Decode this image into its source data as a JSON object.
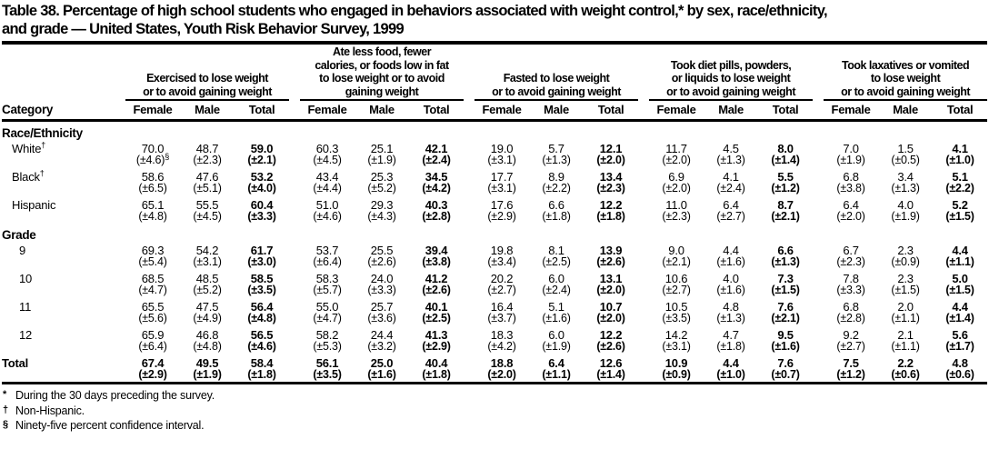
{
  "colors": {
    "text": "#000000",
    "background": "#ffffff",
    "rule": "#000000"
  },
  "title": {
    "line1": "Table 38. Percentage of high school students who engaged in behaviors associated with weight control,* by sex, race/ethnicity,",
    "line2": "and grade — United States, Youth Risk Behavior Survey, 1999"
  },
  "table": {
    "category_header": "Category",
    "sub_headers": [
      "Female",
      "Male",
      "Total"
    ],
    "groups": [
      {
        "lines": [
          "Exercised to lose weight",
          "or to avoid gaining weight"
        ]
      },
      {
        "lines": [
          "Ate less food, fewer",
          "calories, or foods low in fat",
          "to lose weight or to avoid",
          "gaining weight"
        ]
      },
      {
        "lines": [
          "Fasted to lose weight",
          "or to avoid gaining weight"
        ]
      },
      {
        "lines": [
          "Took diet pills, powders,",
          "or liquids to lose weight",
          "or to avoid gaining weight"
        ]
      },
      {
        "lines": [
          "Took laxatives or vomited",
          "to lose weight",
          "or to avoid gaining weight"
        ]
      }
    ],
    "sections": [
      {
        "label": "Race/Ethnicity",
        "rows": [
          {
            "label": "White",
            "sup": "†",
            "values": [
              "70.0",
              "48.7",
              "59.0",
              "60.3",
              "25.1",
              "42.1",
              "19.0",
              "5.7",
              "12.1",
              "11.7",
              "4.5",
              "8.0",
              "7.0",
              "1.5",
              "4.1"
            ],
            "ci": [
              "(±4.6)§",
              "(±2.3)",
              "(±2.1)",
              "(±4.5)",
              "(±1.9)",
              "(±2.4)",
              "(±3.1)",
              "(±1.3)",
              "(±2.0)",
              "(±2.0)",
              "(±1.3)",
              "(±1.4)",
              "(±1.9)",
              "(±0.5)",
              "(±1.0)"
            ]
          },
          {
            "label": "Black",
            "sup": "†",
            "values": [
              "58.6",
              "47.6",
              "53.2",
              "43.4",
              "25.3",
              "34.5",
              "17.7",
              "8.9",
              "13.4",
              "6.9",
              "4.1",
              "5.5",
              "6.8",
              "3.4",
              "5.1"
            ],
            "ci": [
              "(±6.5)",
              "(±5.1)",
              "(±4.0)",
              "(±4.4)",
              "(±5.2)",
              "(±4.2)",
              "(±3.1)",
              "(±2.2)",
              "(±2.3)",
              "(±2.0)",
              "(±2.4)",
              "(±1.2)",
              "(±3.8)",
              "(±1.3)",
              "(±2.2)"
            ]
          },
          {
            "label": "Hispanic",
            "sup": "",
            "values": [
              "65.1",
              "55.5",
              "60.4",
              "51.0",
              "29.3",
              "40.3",
              "17.6",
              "6.6",
              "12.2",
              "11.0",
              "6.4",
              "8.7",
              "6.4",
              "4.0",
              "5.2"
            ],
            "ci": [
              "(±4.8)",
              "(±4.5)",
              "(±3.3)",
              "(±4.6)",
              "(±4.3)",
              "(±2.8)",
              "(±2.9)",
              "(±1.8)",
              "(±1.8)",
              "(±2.3)",
              "(±2.7)",
              "(±2.1)",
              "(±2.0)",
              "(±1.9)",
              "(±1.5)"
            ]
          }
        ]
      },
      {
        "label": "Grade",
        "rows": [
          {
            "label": "9",
            "sup": "",
            "values": [
              "69.3",
              "54.2",
              "61.7",
              "53.7",
              "25.5",
              "39.4",
              "19.8",
              "8.1",
              "13.9",
              "9.0",
              "4.4",
              "6.6",
              "6.7",
              "2.3",
              "4.4"
            ],
            "ci": [
              "(±5.4)",
              "(±3.1)",
              "(±3.0)",
              "(±6.4)",
              "(±2.6)",
              "(±3.8)",
              "(±3.4)",
              "(±2.5)",
              "(±2.6)",
              "(±2.1)",
              "(±1.6)",
              "(±1.3)",
              "(±2.3)",
              "(±0.9)",
              "(±1.1)"
            ]
          },
          {
            "label": "10",
            "sup": "",
            "values": [
              "68.5",
              "48.5",
              "58.5",
              "58.3",
              "24.0",
              "41.2",
              "20.2",
              "6.0",
              "13.1",
              "10.6",
              "4.0",
              "7.3",
              "7.8",
              "2.3",
              "5.0"
            ],
            "ci": [
              "(±4.7)",
              "(±5.2)",
              "(±3.5)",
              "(±5.7)",
              "(±3.3)",
              "(±2.6)",
              "(±2.7)",
              "(±2.4)",
              "(±2.0)",
              "(±2.7)",
              "(±1.6)",
              "(±1.5)",
              "(±3.3)",
              "(±1.5)",
              "(±1.5)"
            ]
          },
          {
            "label": "11",
            "sup": "",
            "values": [
              "65.5",
              "47.5",
              "56.4",
              "55.0",
              "25.7",
              "40.1",
              "16.4",
              "5.1",
              "10.7",
              "10.5",
              "4.8",
              "7.6",
              "6.8",
              "2.0",
              "4.4"
            ],
            "ci": [
              "(±5.6)",
              "(±4.9)",
              "(±4.8)",
              "(±4.7)",
              "(±3.6)",
              "(±2.5)",
              "(±3.7)",
              "(±1.6)",
              "(±2.0)",
              "(±3.5)",
              "(±1.3)",
              "(±2.1)",
              "(±2.8)",
              "(±1.1)",
              "(±1.4)"
            ]
          },
          {
            "label": "12",
            "sup": "",
            "values": [
              "65.9",
              "46.8",
              "56.5",
              "58.2",
              "24.4",
              "41.3",
              "18.3",
              "6.0",
              "12.2",
              "14.2",
              "4.7",
              "9.5",
              "9.2",
              "2.1",
              "5.6"
            ],
            "ci": [
              "(±6.4)",
              "(±4.8)",
              "(±4.6)",
              "(±5.3)",
              "(±3.2)",
              "(±2.9)",
              "(±4.2)",
              "(±1.9)",
              "(±2.6)",
              "(±3.1)",
              "(±1.8)",
              "(±1.6)",
              "(±2.7)",
              "(±1.1)",
              "(±1.7)"
            ]
          }
        ]
      }
    ],
    "total_row": {
      "label": "Total",
      "sup": "",
      "values": [
        "67.4",
        "49.5",
        "58.4",
        "56.1",
        "25.0",
        "40.4",
        "18.8",
        "6.4",
        "12.6",
        "10.9",
        "4.4",
        "7.6",
        "7.5",
        "2.2",
        "4.8"
      ],
      "ci": [
        "(±2.9)",
        "(±1.9)",
        "(±1.8)",
        "(±3.5)",
        "(±1.6)",
        "(±1.8)",
        "(±2.0)",
        "(±1.1)",
        "(±1.4)",
        "(±0.9)",
        "(±1.0)",
        "(±0.7)",
        "(±1.2)",
        "(±0.6)",
        "(±0.6)"
      ]
    }
  },
  "footnotes": [
    {
      "marker": "*",
      "text": "During the 30 days preceding the survey."
    },
    {
      "marker": "†",
      "text": "Non-Hispanic."
    },
    {
      "marker": "§",
      "text": "Ninety-five percent confidence interval."
    }
  ]
}
